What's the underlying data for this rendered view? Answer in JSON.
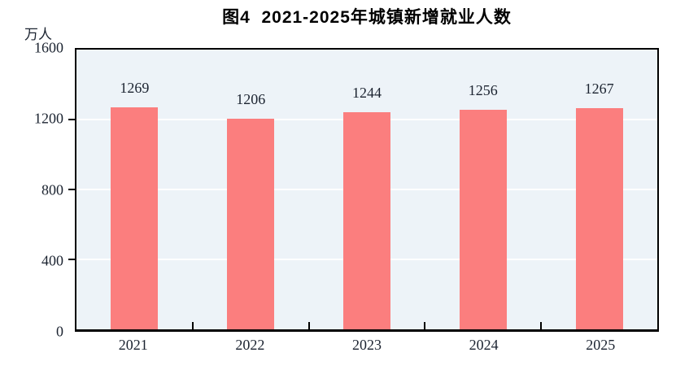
{
  "chart_data": {
    "type": "bar",
    "title": "图4  2021-2025年城镇新增就业人数",
    "unit_label": "万人",
    "categories": [
      "2021",
      "2022",
      "2023",
      "2024",
      "2025"
    ],
    "values": [
      1269,
      1206,
      1244,
      1256,
      1267
    ],
    "xlabel": "",
    "ylabel": "万人",
    "ylim": [
      0,
      1600
    ],
    "yticks": [
      0,
      400,
      800,
      1200,
      1600
    ],
    "grid": true,
    "legend": "none",
    "colors": {
      "bar": "#FB7E7E",
      "plot_background": "#EDF3F8",
      "gridline": "#FFFFFF",
      "axis": "#000000",
      "text": "#1B2330"
    }
  }
}
